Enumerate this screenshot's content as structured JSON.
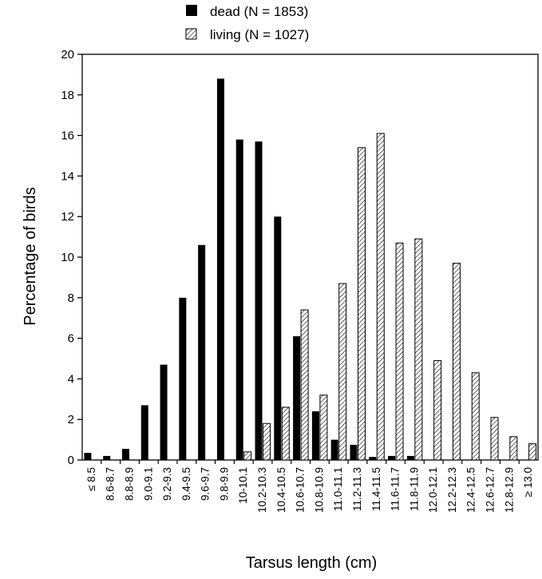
{
  "chart_data": {
    "type": "bar",
    "title": "",
    "xlabel": "Tarsus length (cm)",
    "ylabel": "Percentage of birds",
    "ylim": [
      0,
      20
    ],
    "yticks": [
      0,
      2,
      4,
      6,
      8,
      10,
      12,
      14,
      16,
      18,
      20
    ],
    "grid": false,
    "legend_position": "top-center",
    "categories": [
      "≤ 8.5",
      "8.6-8.7",
      "8.8-8.9",
      "9.0-9.1",
      "9.2-9.3",
      "9.4-9.5",
      "9.6-9.7",
      "9.8-9.9",
      "10-10.1",
      "10.2-10.3",
      "10.4-10.5",
      "10.6-10.7",
      "10.8-10.9",
      "11.0-11.1",
      "11.2-11.3",
      "11.4-11.5",
      "11.6-11.7",
      "11.8-11.9",
      "12.0-12.1",
      "12.2-12.3",
      "12.4-12.5",
      "12.6-12.7",
      "12.8-12.9",
      "≥ 13.0"
    ],
    "series": [
      {
        "name": "dead (N = 1853)",
        "fill": "solid",
        "color": "#000000",
        "values": [
          0.35,
          0.2,
          0.55,
          2.7,
          4.7,
          8.0,
          10.6,
          18.8,
          15.8,
          15.7,
          12.0,
          6.1,
          2.4,
          1.0,
          0.75,
          0.15,
          0.2,
          0.2,
          0,
          0,
          0,
          0,
          0,
          0
        ]
      },
      {
        "name": "living (N = 1027)",
        "fill": "hatched",
        "color": "#000000",
        "values": [
          0,
          0,
          0,
          0,
          0,
          0,
          0,
          0,
          0.4,
          1.8,
          2.6,
          7.4,
          3.2,
          8.7,
          15.4,
          16.1,
          10.7,
          10.9,
          4.9,
          9.7,
          4.3,
          2.1,
          1.15,
          0.8
        ]
      }
    ]
  }
}
